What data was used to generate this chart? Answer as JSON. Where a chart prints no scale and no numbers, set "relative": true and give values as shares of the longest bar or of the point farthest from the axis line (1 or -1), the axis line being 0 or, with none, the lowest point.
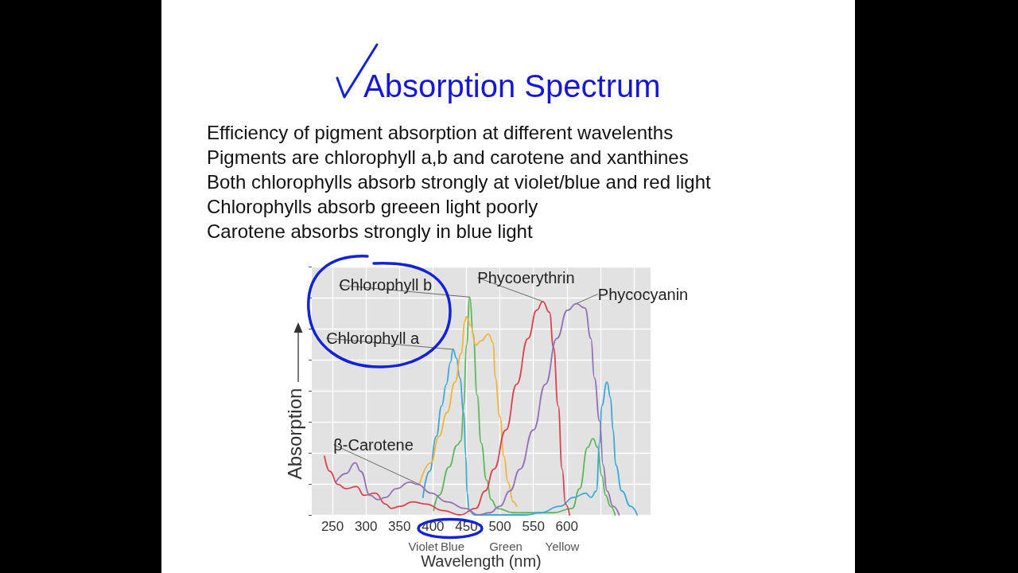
{
  "chart_data": {
    "type": "line",
    "title": "Absorption Spectrum",
    "xlabel": "Wavelength (nm)",
    "ylabel": "Absorption",
    "relative": true,
    "tick_labels": "x",
    "grid": true,
    "xlim": [
      219,
      725
    ],
    "xticks": [
      250,
      300,
      350,
      400,
      450,
      500,
      550,
      600,
      {
        "value": 650,
        "label": null
      },
      {
        "value": 700,
        "label": null
      }
    ],
    "series": [
      {
        "name": "Chlorophyll b",
        "color": "#5cb85c",
        "x": [
          401,
          409,
          424,
          436,
          442,
          446,
          450,
          455,
          460,
          466,
          472,
          480,
          487,
          496,
          520,
          580,
          608,
          619,
          631,
          639,
          646,
          652,
          658,
          665,
          672
        ],
        "values": [
          0.02,
          0.09,
          0.22,
          0.32,
          0.34,
          0.5,
          0.78,
          1,
          0.83,
          0.55,
          0.33,
          0.16,
          0.07,
          0.03,
          0.01,
          0.01,
          0.03,
          0.12,
          0.31,
          0.35,
          0.31,
          0.18,
          0.09,
          0.04,
          0
        ]
      },
      {
        "name": "Chlorophyll a",
        "color": "#3aa9d9",
        "x": [
          385,
          395,
          405,
          413,
          420,
          426,
          430,
          435,
          440,
          446,
          449,
          451,
          454,
          462,
          540,
          560,
          590,
          610,
          628,
          636,
          644,
          649,
          652,
          660,
          665,
          669,
          673,
          682,
          695,
          705
        ],
        "values": [
          0.08,
          0.2,
          0.36,
          0.5,
          0.6,
          0.7,
          0.76,
          0.72,
          0.63,
          0.47,
          0.27,
          0.1,
          0.02,
          0,
          0,
          0.01,
          0.04,
          0.08,
          0.1,
          0.08,
          0.11,
          0.33,
          0.5,
          0.61,
          0.54,
          0.39,
          0.23,
          0.11,
          0.04,
          0
        ]
      },
      {
        "name": "β-Carotene",
        "color": "#f2b53a",
        "x": [
          380,
          397,
          409,
          421,
          433,
          442,
          448,
          450,
          456,
          464,
          472,
          483,
          490,
          493,
          500,
          506,
          512,
          520,
          525
        ],
        "values": [
          0.14,
          0.24,
          0.36,
          0.47,
          0.61,
          0.74,
          0.89,
          0.91,
          0.87,
          0.78,
          0.8,
          0.83,
          0.79,
          0.63,
          0.45,
          0.27,
          0.15,
          0.06,
          0.04
        ]
      },
      {
        "name": "Phycoerythrin",
        "color": "#d9434f",
        "x": [
          238,
          246,
          258,
          270,
          286,
          297,
          314,
          329,
          338,
          352,
          369,
          389,
          416,
          440,
          464,
          478,
          491,
          509,
          525,
          542,
          555,
          564,
          574,
          580,
          587,
          593,
          598,
          604
        ],
        "values": [
          0.27,
          0.2,
          0.14,
          0.12,
          0.13,
          0.09,
          0.1,
          0.05,
          0.03,
          0.04,
          0.06,
          0.05,
          0.02,
          0,
          0.03,
          0.11,
          0.21,
          0.39,
          0.6,
          0.81,
          0.94,
          0.98,
          0.93,
          0.77,
          0.5,
          0.21,
          0.05,
          0
        ]
      },
      {
        "name": "Phycocyanin",
        "color": "#9173b5",
        "x": [
          255,
          270,
          284,
          292,
          306,
          318,
          329,
          345,
          365,
          377,
          397,
          421,
          448,
          468,
          485,
          500,
          515,
          530,
          550,
          568,
          585,
          601,
          614,
          627,
          636,
          641,
          649,
          654,
          660,
          669,
          678
        ],
        "values": [
          0.15,
          0.19,
          0.24,
          0.2,
          0.09,
          0.07,
          0.08,
          0.12,
          0.15,
          0.14,
          0.1,
          0.06,
          0.03,
          0,
          0.01,
          0.04,
          0.11,
          0.21,
          0.39,
          0.6,
          0.81,
          0.94,
          0.97,
          0.95,
          0.81,
          0.63,
          0.43,
          0.23,
          0.11,
          0.04,
          0
        ]
      }
    ],
    "annotations": [
      "Efficiency of pigment absorption at different wavelenths",
      "Pigments are chlorophyll a,b and carotene and xanthines",
      "Both chlorophylls absorb strongly at violet/blue and red light",
      "Chlorophylls absorb greeen light poorly",
      "Carotene absorbs strongly in blue light",
      "Violet",
      "Blue",
      "Green",
      "Yellow"
    ]
  }
}
